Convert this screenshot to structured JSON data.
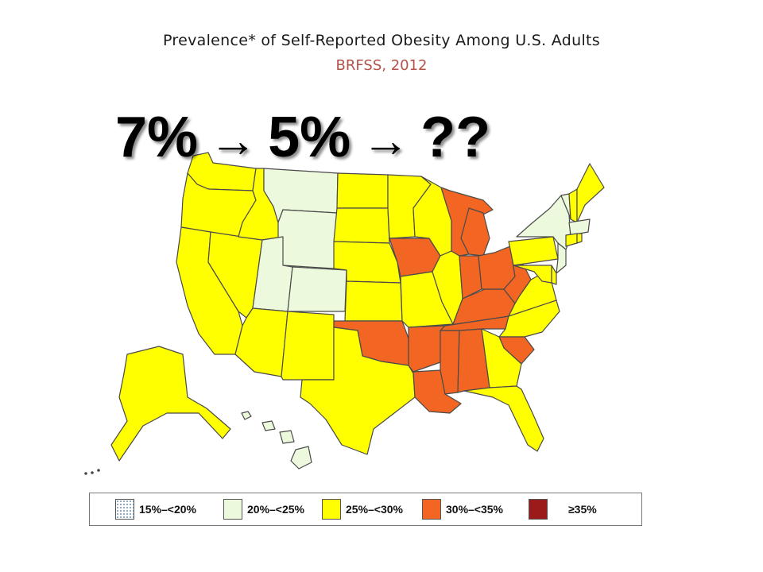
{
  "title": "Prevalence* of Self-Reported Obesity Among U.S. Adults",
  "subtitle": "BRFSS, 2012",
  "headline": {
    "parts": [
      "7%",
      "→",
      "5%",
      "→",
      "??"
    ]
  },
  "colors": {
    "subtitle": "#b5524a",
    "legend_15_20": "#ffffff",
    "legend_20_25": "#ecf9dc",
    "legend_25_30": "#ffff00",
    "legend_30_35": "#f26522",
    "legend_35_plus": "#9b1b1b",
    "state_outline": "#4a4a4a"
  },
  "legend": [
    {
      "label": "15%–<20%",
      "color": "#ffffff",
      "dotted": true
    },
    {
      "label": "20%–<25%",
      "color": "#ecf9dc"
    },
    {
      "label": "25%–<30%",
      "color": "#ffff00"
    },
    {
      "label": "30%–<35%",
      "color": "#f26522"
    },
    {
      "label": "≥35%",
      "color": "#9b1b1b"
    }
  ],
  "map": {
    "categories": {
      "20-25": [
        "MT",
        "WY",
        "UT",
        "CO",
        "NY",
        "VT",
        "MA",
        "NJ",
        "DC",
        "HI"
      ],
      "25-30": [
        "WA",
        "OR",
        "CA",
        "NV",
        "ID",
        "AZ",
        "NM",
        "TX",
        "ND",
        "SD",
        "NE",
        "KS",
        "MN",
        "WI",
        "MO",
        "IL",
        "FL",
        "GA",
        "NC",
        "VA",
        "PA",
        "MD",
        "DE",
        "CT",
        "RI",
        "NH",
        "ME",
        "AK"
      ],
      "30-35": [
        "OK",
        "AR",
        "LA",
        "MS",
        "AL",
        "TN",
        "KY",
        "IN",
        "MI",
        "OH",
        "WV",
        "SC",
        "IA"
      ]
    }
  }
}
